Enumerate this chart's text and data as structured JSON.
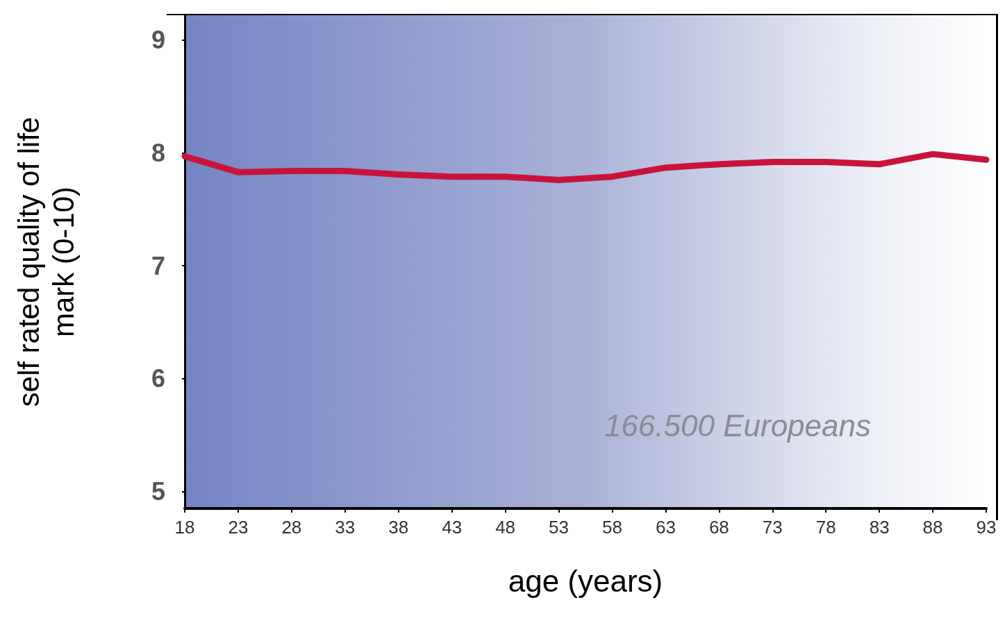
{
  "chart_data": {
    "type": "line",
    "xlabel": "age (years)",
    "ylabel": "self rated quality of life\nmark (0-10)",
    "x": [
      18,
      23,
      28,
      33,
      38,
      43,
      48,
      53,
      58,
      63,
      68,
      73,
      78,
      83,
      88,
      93
    ],
    "series": [
      {
        "color": "#c8143c",
        "values": [
          7.97,
          7.83,
          7.84,
          7.84,
          7.81,
          7.79,
          7.79,
          7.76,
          7.79,
          7.87,
          7.9,
          7.92,
          7.92,
          7.9,
          7.99,
          7.94
        ]
      }
    ],
    "xlim": [
      18,
      93
    ],
    "xticks": [
      18,
      23,
      28,
      33,
      38,
      43,
      48,
      53,
      58,
      63,
      68,
      73,
      78,
      83,
      88,
      93
    ],
    "ylim": [
      4.85,
      9.22
    ],
    "yticks": [
      5,
      6,
      7,
      8,
      9
    ],
    "annotations": [
      "166.500 Europeans"
    ],
    "grid": false,
    "line_style": "solid"
  }
}
